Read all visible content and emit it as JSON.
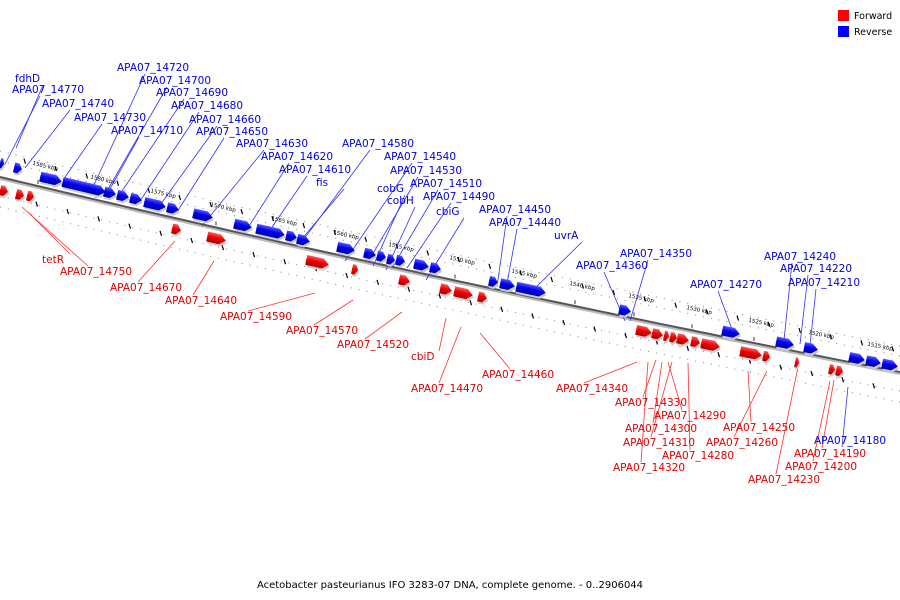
{
  "legend": {
    "forward_label": "Forward",
    "forward_color": "#ff0000",
    "reverse_label": "Reverse",
    "reverse_color": "#0000ff"
  },
  "caption": "Acetobacter pasteurianus IFO 3283-07 DNA, complete genome. - 0..2906044",
  "scale_labels": [
    "1585 kbp",
    "1580 kbp",
    "1575 kbp",
    "1570 kbp",
    "1565 kbp",
    "1560 kbp",
    "1555 kbp",
    "1550 kbp",
    "1545 kbp",
    "1540 kbp",
    "1535 kbp",
    "1530 kbp",
    "1525 kbp",
    "1520 kbp",
    "1515 kbp"
  ],
  "reverse_genes": [
    "fdhD",
    "APA07_14770",
    "APA07_14740",
    "APA07_14730",
    "APA07_14720",
    "APA07_14700",
    "APA07_14690",
    "APA07_14710",
    "APA07_14680",
    "APA07_14660",
    "APA07_14650",
    "APA07_14630",
    "APA07_14620",
    "APA07_14610",
    "fis",
    "APA07_14580",
    "APA07_14540",
    "APA07_14530",
    "cobG",
    "APA07_14510",
    "cobH",
    "APA07_14490",
    "cbiG",
    "APA07_14450",
    "APA07_14440",
    "uvrA",
    "APA07_14350",
    "APA07_14360",
    "APA07_14270",
    "APA07_14240",
    "APA07_14220",
    "APA07_14210",
    "APA07_14180"
  ],
  "forward_genes": [
    "tetR",
    "APA07_14750",
    "APA07_14670",
    "APA07_14640",
    "APA07_14590",
    "APA07_14570",
    "APA07_14520",
    "cbiD",
    "APA07_14470",
    "APA07_14460",
    "APA07_14340",
    "APA07_14330",
    "APA07_14290",
    "APA07_14300",
    "APA07_14310",
    "APA07_14280",
    "APA07_14320",
    "APA07_14250",
    "APA07_14260",
    "APA07_14190",
    "APA07_14200",
    "APA07_14230"
  ]
}
